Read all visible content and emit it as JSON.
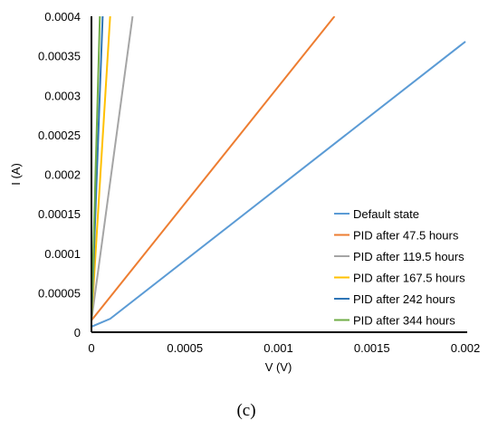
{
  "chart_data": {
    "type": "line",
    "panel_label": "(c)",
    "xlabel": "V (V)",
    "ylabel": "I (A)",
    "xlim": [
      0,
      0.002
    ],
    "ylim": [
      0,
      0.0004
    ],
    "x_ticks": [
      "0",
      "0.0005",
      "0.001",
      "0.0015",
      "0.002"
    ],
    "y_ticks": [
      "0",
      "0.00005",
      "0.0001",
      "0.00015",
      "0.0002",
      "0.00025",
      "0.0003",
      "0.00035",
      "0.0004"
    ],
    "grid": false,
    "legend_position": "bottom-right",
    "series": [
      {
        "name": "Default state",
        "color": "#5b9bd5",
        "points": [
          [
            0,
            7e-06
          ],
          [
            0.0001,
            1.7e-05
          ],
          [
            0.002,
            0.000368
          ]
        ]
      },
      {
        "name": "PID after 47.5 hours",
        "color": "#ed7d31",
        "points": [
          [
            0,
            1.5e-05
          ],
          [
            0.0013,
            0.0004
          ]
        ]
      },
      {
        "name": "PID after 119.5 hours",
        "color": "#a5a5a5",
        "points": [
          [
            0,
            1.5e-05
          ],
          [
            0.00022,
            0.0004
          ]
        ]
      },
      {
        "name": "PID after 167.5 hours",
        "color": "#ffc000",
        "points": [
          [
            0,
            1.5e-05
          ],
          [
            0.0001,
            0.0004
          ]
        ]
      },
      {
        "name": "PID after 242 hours",
        "color": "#2e75b6",
        "points": [
          [
            0,
            1.5e-05
          ],
          [
            6e-05,
            0.0004
          ]
        ]
      },
      {
        "name": "PID after 344 hours",
        "color": "#70ad47",
        "points": [
          [
            0,
            1.5e-05
          ],
          [
            4.5e-05,
            0.0004
          ]
        ]
      }
    ]
  }
}
